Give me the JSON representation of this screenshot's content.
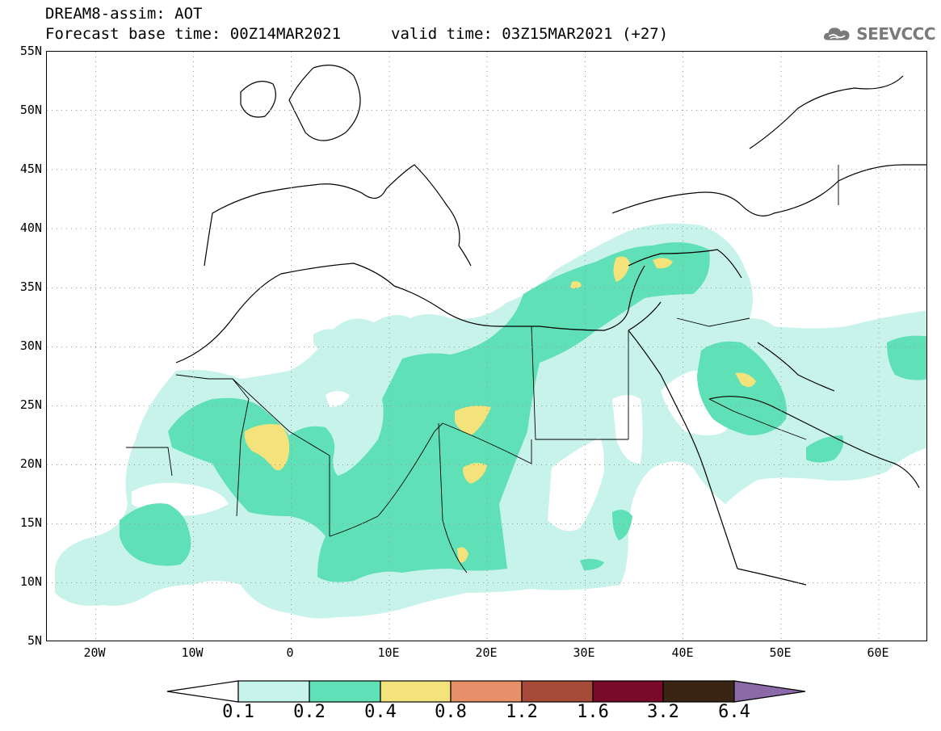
{
  "title": {
    "line1": "DREAM8-assim: AOT",
    "line2": "Forecast base time: 00Z14MAR2021",
    "line3": "valid time: 03Z15MAR2021 (+27)"
  },
  "logo": {
    "text": "SEEVCCC",
    "icon": "cloud-icon",
    "color": "#7a7a7a"
  },
  "map": {
    "lon_range": [
      -25,
      65
    ],
    "lat_range": [
      5,
      55
    ],
    "lat_labels": [
      "55N",
      "50N",
      "45N",
      "40N",
      "35N",
      "30N",
      "25N",
      "20N",
      "15N",
      "10N",
      "5N"
    ],
    "lon_labels": [
      "20W",
      "10W",
      "0",
      "10E",
      "20E",
      "30E",
      "40E",
      "50E",
      "60E"
    ],
    "grid": "dotted"
  },
  "colorbar": {
    "labels": [
      "0.1",
      "0.2",
      "0.4",
      "0.8",
      "1.2",
      "1.6",
      "3.2",
      "6.4"
    ],
    "colors": [
      "#ffffff",
      "#c8f3ea",
      "#5fe0b6",
      "#f4e27a",
      "#e8906a",
      "#a84a3a",
      "#7a0a2a",
      "#3a2414",
      "#8c6aa8"
    ]
  }
}
